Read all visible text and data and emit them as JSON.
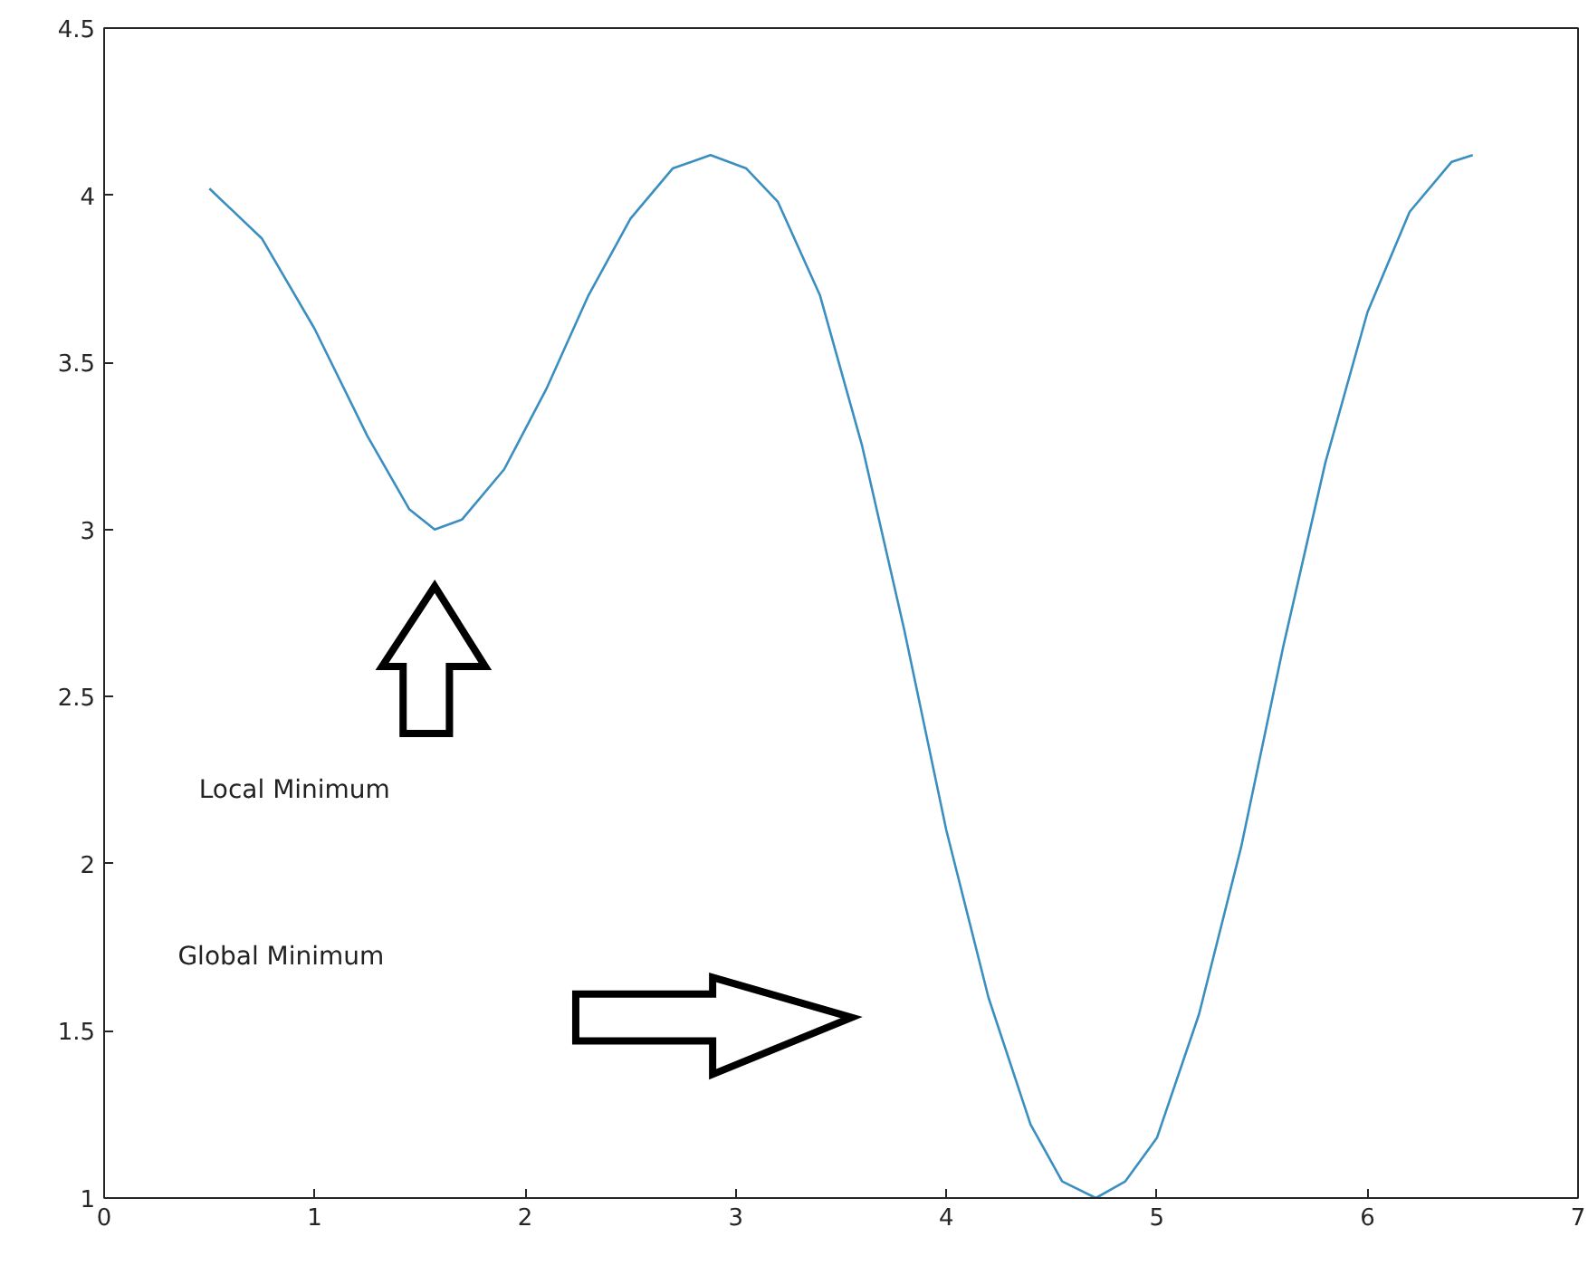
{
  "chart_data": {
    "type": "line",
    "x": [
      0.5,
      0.75,
      1.0,
      1.25,
      1.45,
      1.57,
      1.7,
      1.9,
      2.1,
      2.3,
      2.5,
      2.7,
      2.88,
      3.05,
      3.2,
      3.4,
      3.6,
      3.8,
      4.0,
      4.2,
      4.4,
      4.55,
      4.71,
      4.85,
      5.0,
      5.2,
      5.4,
      5.6,
      5.8,
      6.0,
      6.2,
      6.4,
      6.5
    ],
    "series": [
      {
        "color": "#3b8fc0",
        "values": [
          4.02,
          3.87,
          3.6,
          3.28,
          3.06,
          3.0,
          3.03,
          3.18,
          3.42,
          3.7,
          3.93,
          4.08,
          4.12,
          4.08,
          3.98,
          3.7,
          3.25,
          2.7,
          2.1,
          1.6,
          1.22,
          1.05,
          1.0,
          1.05,
          1.18,
          1.55,
          2.05,
          2.65,
          3.2,
          3.65,
          3.95,
          4.1,
          4.12
        ]
      }
    ],
    "xlim": [
      0,
      7
    ],
    "ylim": [
      1,
      4.5
    ],
    "xticks": [
      0,
      1,
      2,
      3,
      4,
      5,
      6,
      7
    ],
    "yticks": [
      1,
      1.5,
      2,
      2.5,
      3,
      3.5,
      4,
      4.5
    ],
    "annotations": [
      "Local Minimum",
      "Global Minimum"
    ],
    "grid": false,
    "line_style": "solid"
  }
}
